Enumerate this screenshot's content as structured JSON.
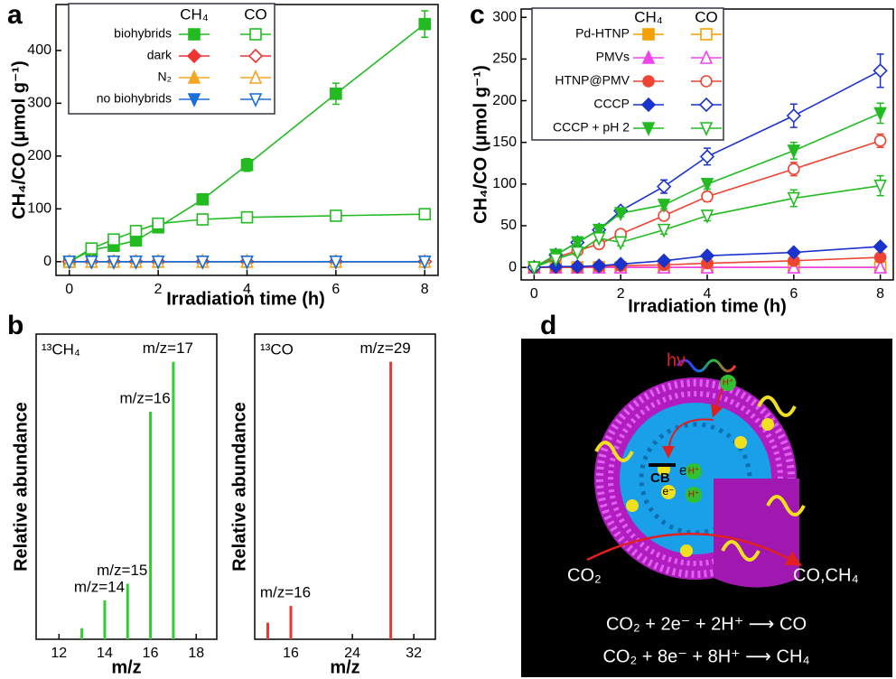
{
  "chart_data": [
    {
      "type": "line",
      "panel": "a",
      "xlabel": "Irradiation time (h)",
      "ylabel": "CH₄/CO (μmol g⁻¹)",
      "x": [
        0,
        0.5,
        1,
        1.5,
        2,
        3,
        4,
        6,
        8
      ],
      "xlim": [
        -0.3,
        8.3
      ],
      "ylim": [
        -26,
        487
      ],
      "xticks": [
        0,
        2,
        4,
        6,
        8
      ],
      "yticks": [
        0,
        100,
        200,
        300,
        400
      ],
      "legend": "upper left",
      "legend_columns": [
        "CH₄",
        "CO"
      ],
      "series": [
        {
          "name": "biohybrids",
          "color": "#22bb22",
          "marker": "square",
          "values": [
            0,
            22,
            30,
            40,
            65,
            118,
            183,
            318,
            450
          ],
          "errors": [
            0,
            3,
            3,
            3,
            4,
            8,
            12,
            20,
            25
          ],
          "co_values": [
            0,
            25,
            42,
            58,
            72,
            80,
            84,
            87,
            90
          ],
          "co_errors": [
            0,
            3,
            3,
            3,
            4,
            5,
            5,
            6,
            6
          ]
        },
        {
          "name": "dark",
          "color": "#ee3333",
          "marker": "diamond",
          "values": [
            0,
            0,
            0,
            0,
            0,
            0,
            0,
            0,
            0
          ],
          "co_values": [
            0,
            0,
            0,
            0,
            0,
            0,
            0,
            0,
            0
          ]
        },
        {
          "name": "N₂",
          "color": "#f5a623",
          "marker": "triangle-up",
          "values": [
            0,
            0,
            0,
            0,
            0,
            0,
            0,
            0,
            0
          ],
          "co_values": [
            0,
            0,
            0,
            0,
            0,
            0,
            0,
            0,
            0
          ]
        },
        {
          "name": "no biohybrids",
          "color": "#1a6fd6",
          "marker": "triangle-down",
          "values": [
            0,
            0,
            0,
            0,
            0,
            0,
            0,
            0,
            0
          ],
          "co_values": [
            0,
            0,
            0,
            0,
            0,
            0,
            0,
            0,
            0
          ]
        }
      ]
    },
    {
      "type": "stem",
      "panel": "b",
      "label": "¹³CH₄",
      "xlabel": "m/z",
      "ylabel": "Relative abundance",
      "x": [
        13,
        14,
        15,
        16,
        17
      ],
      "values": [
        4,
        14,
        20,
        82,
        100
      ],
      "point_labels": [
        null,
        "m/z=14",
        "m/z=15",
        "m/z=16",
        "m/z=17"
      ],
      "xlim": [
        11,
        18.9
      ],
      "ylim": [
        0,
        110
      ],
      "xticks": [
        12,
        14,
        16,
        18
      ],
      "color": "#33cc33"
    },
    {
      "type": "stem",
      "label": "¹³CO",
      "xlabel": "m/z",
      "ylabel": "Relative abundance",
      "x": [
        13,
        16,
        29
      ],
      "values": [
        6,
        12,
        100
      ],
      "point_labels": [
        null,
        "m/z=16",
        "m/z=29"
      ],
      "xlim": [
        11.3,
        34.8
      ],
      "ylim": [
        0,
        110
      ],
      "xticks": [
        16,
        24,
        32
      ],
      "color": "#ee3333"
    },
    {
      "type": "line",
      "panel": "c",
      "xlabel": "Irradiation time (h)",
      "ylabel": "CH₄/CO (μmol g⁻¹)",
      "x": [
        0,
        0.5,
        1,
        1.5,
        2,
        3,
        4,
        6,
        8
      ],
      "xlim": [
        -0.3,
        8.3
      ],
      "ylim": [
        -15,
        310
      ],
      "xticks": [
        0,
        2,
        4,
        6,
        8
      ],
      "yticks": [
        0,
        50,
        100,
        150,
        200,
        250,
        300
      ],
      "legend": "upper left",
      "legend_columns": [
        "CH₄",
        "CO"
      ],
      "series": [
        {
          "name": "Pd-HTNP",
          "color": "#f5a000",
          "marker": "square",
          "values": [
            0,
            0,
            0,
            0,
            0,
            0,
            0,
            0,
            0
          ],
          "co_values": [
            0,
            0,
            0,
            0,
            0,
            0,
            0,
            0,
            0
          ]
        },
        {
          "name": "PMVs",
          "color": "#ee44ee",
          "marker": "triangle-up",
          "values": [
            0,
            0,
            0,
            0,
            0,
            0,
            0,
            0,
            0
          ],
          "co_values": [
            0,
            0,
            0,
            0,
            0,
            0,
            0,
            0,
            0
          ]
        },
        {
          "name": "HTNP@PMV",
          "color": "#ee4433",
          "marker": "circle",
          "values": [
            0,
            0,
            0,
            1,
            2,
            3,
            5,
            8,
            12
          ],
          "co_values": [
            0,
            12,
            20,
            28,
            40,
            62,
            85,
            118,
            152
          ],
          "co_errors": [
            0,
            2,
            3,
            3,
            4,
            5,
            6,
            8,
            8
          ]
        },
        {
          "name": "CCCP",
          "color": "#1a33cc",
          "marker": "diamond",
          "values": [
            0,
            1,
            1,
            2,
            4,
            8,
            14,
            18,
            25
          ],
          "co_values": [
            0,
            15,
            30,
            45,
            68,
            97,
            133,
            182,
            236
          ],
          "co_errors": [
            0,
            2,
            3,
            3,
            4,
            8,
            10,
            14,
            20
          ]
        },
        {
          "name": "CCCP + pH 2",
          "color": "#22bb22",
          "marker": "triangle-down",
          "values": [
            0,
            15,
            30,
            45,
            65,
            75,
            100,
            140,
            185
          ],
          "errors": [
            0,
            2,
            3,
            3,
            4,
            5,
            6,
            10,
            12
          ],
          "co_values": [
            0,
            10,
            18,
            35,
            30,
            45,
            62,
            83,
            98
          ],
          "co_errors": [
            0,
            2,
            3,
            3,
            4,
            5,
            6,
            10,
            12
          ]
        }
      ]
    }
  ],
  "diagram": {
    "panel": "d",
    "light": "hν",
    "electron": "e⁻",
    "band": "CB",
    "proton": "H⁺",
    "reactant": "CO₂",
    "products": "CO,CH₄",
    "equations": [
      "CO₂ + 2e⁻ + 2H⁺ ⟶ CO",
      "CO₂ + 8e⁻ + 8H⁺ ⟶ CH₄"
    ]
  }
}
